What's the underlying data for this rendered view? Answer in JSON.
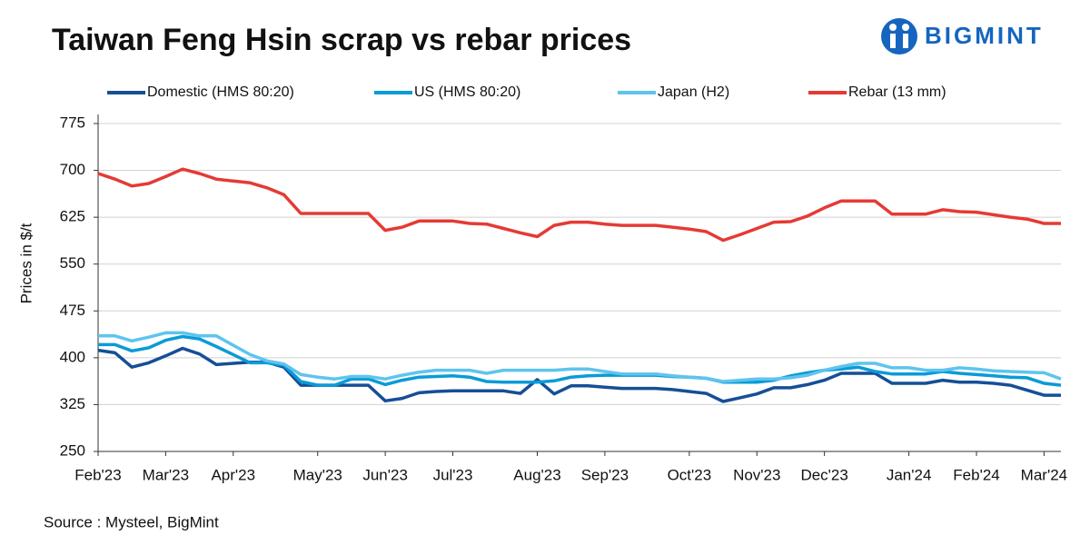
{
  "logo": "BIGMINT",
  "chart_data": {
    "type": "line",
    "title": "Taiwan Feng Hsin scrap vs rebar prices",
    "y_label": "Prices in $/t",
    "source": "Source : Mysteel, BigMint",
    "categories": [
      "Feb'23",
      null,
      null,
      null,
      "Mar'23",
      null,
      null,
      null,
      "Apr'23",
      null,
      null,
      null,
      null,
      "May'23",
      null,
      null,
      null,
      "Jun'23",
      null,
      null,
      null,
      "Jul'23",
      null,
      null,
      null,
      null,
      "Aug'23",
      null,
      null,
      null,
      "Sep'23",
      null,
      null,
      null,
      null,
      "Oct'23",
      null,
      null,
      null,
      "Nov'23",
      null,
      null,
      null,
      "Dec'23",
      null,
      null,
      null,
      null,
      "Jan'24",
      null,
      null,
      null,
      "Feb'24",
      null,
      null,
      null,
      "Mar'24",
      null
    ],
    "series": [
      {
        "name": "Domestic (HMS 80:20)",
        "color": "#154f96",
        "values": [
          412,
          408,
          385,
          392,
          403,
          415,
          406,
          389,
          391,
          393,
          393,
          385,
          356,
          356,
          356,
          356,
          356,
          331,
          335,
          344,
          346,
          347,
          347,
          347,
          347,
          343,
          365,
          342,
          355,
          355,
          353,
          351,
          351,
          351,
          349,
          346,
          343,
          330,
          336,
          342,
          352,
          352,
          357,
          364,
          375,
          375,
          375,
          359,
          359,
          359,
          364,
          361,
          361,
          359,
          356,
          348,
          340,
          340
        ]
      },
      {
        "name": "US (HMS 80:20)",
        "color": "#0a9bd7",
        "values": [
          421,
          421,
          411,
          416,
          428,
          434,
          430,
          418,
          405,
          392,
          392,
          388,
          362,
          356,
          356,
          366,
          366,
          357,
          364,
          369,
          370,
          371,
          369,
          362,
          361,
          361,
          361,
          363,
          369,
          371,
          372,
          372,
          372,
          372,
          370,
          369,
          367,
          361,
          361,
          361,
          364,
          371,
          376,
          380,
          382,
          385,
          378,
          374,
          374,
          374,
          378,
          375,
          373,
          371,
          369,
          368,
          359,
          356
        ]
      },
      {
        "name": "Japan (H2)",
        "color": "#5ec4ee",
        "values": [
          435,
          435,
          427,
          433,
          440,
          440,
          435,
          435,
          420,
          405,
          395,
          390,
          373,
          369,
          366,
          370,
          370,
          366,
          372,
          377,
          380,
          380,
          380,
          375,
          380,
          380,
          380,
          380,
          382,
          382,
          378,
          374,
          374,
          374,
          371,
          369,
          367,
          362,
          364,
          366,
          366,
          368,
          372,
          380,
          386,
          391,
          391,
          384,
          384,
          380,
          380,
          384,
          382,
          379,
          378,
          377,
          376,
          366
        ]
      },
      {
        "name": "Rebar (13 mm)",
        "color": "#e53a35",
        "values": [
          695,
          686,
          675,
          679,
          690,
          702,
          695,
          686,
          683,
          680,
          672,
          661,
          631,
          631,
          631,
          631,
          631,
          604,
          609,
          619,
          619,
          619,
          615,
          614,
          607,
          600,
          594,
          612,
          617,
          617,
          614,
          612,
          612,
          612,
          609,
          606,
          602,
          588,
          597,
          607,
          617,
          618,
          627,
          640,
          651,
          651,
          651,
          630,
          630,
          630,
          637,
          634,
          633,
          629,
          625,
          622,
          615,
          615
        ]
      }
    ],
    "ylim": [
      250,
      800
    ],
    "yticks": [
      250,
      325,
      400,
      475,
      550,
      625,
      700,
      775
    ],
    "grid": true
  }
}
